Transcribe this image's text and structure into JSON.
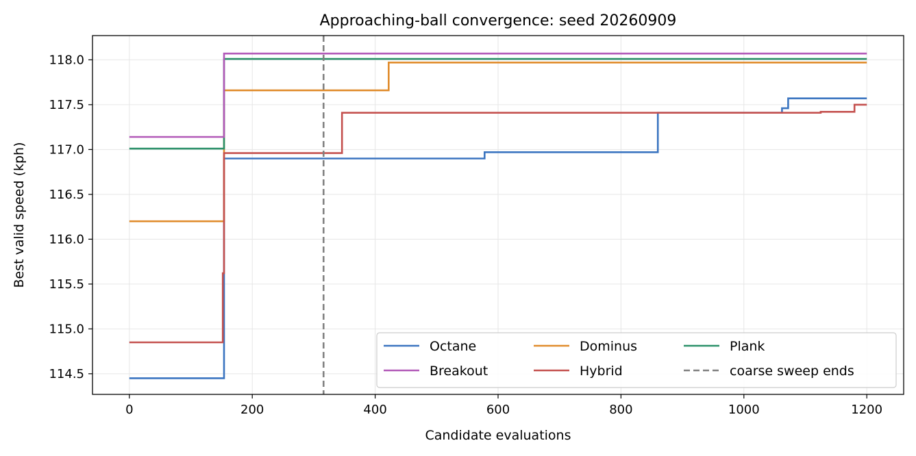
{
  "chart_data": {
    "type": "line",
    "step": true,
    "title": "Approaching-ball convergence: seed 20260909",
    "xlabel": "Candidate evaluations",
    "ylabel": "Best valid speed (kph)",
    "xlim": [
      -60,
      1260
    ],
    "ylim": [
      114.27,
      118.27
    ],
    "xticks": [
      0,
      200,
      400,
      600,
      800,
      1000,
      1200
    ],
    "yticks": [
      114.5,
      115.0,
      115.5,
      116.0,
      116.5,
      117.0,
      117.5,
      118.0
    ],
    "ytick_labels": [
      "114.5",
      "115.0",
      "115.5",
      "116.0",
      "116.5",
      "117.0",
      "117.5",
      "118.0"
    ],
    "grid": true,
    "legend_position": "lower-right",
    "legend_columns": 3,
    "series": [
      {
        "name": "Octane",
        "color": "#3a74c0",
        "points": [
          [
            0,
            114.45
          ],
          [
            154,
            114.45
          ],
          [
            154,
            116.9
          ],
          [
            578,
            116.9
          ],
          [
            578,
            116.97
          ],
          [
            860,
            116.97
          ],
          [
            860,
            117.41
          ],
          [
            1062,
            117.41
          ],
          [
            1062,
            117.46
          ],
          [
            1072,
            117.46
          ],
          [
            1072,
            117.57
          ],
          [
            1200,
            117.57
          ]
        ]
      },
      {
        "name": "Dominus",
        "color": "#e08c2c",
        "points": [
          [
            0,
            116.2
          ],
          [
            154,
            116.2
          ],
          [
            154,
            117.66
          ],
          [
            422,
            117.66
          ],
          [
            422,
            117.97
          ],
          [
            1200,
            117.97
          ]
        ]
      },
      {
        "name": "Plank",
        "color": "#2a9069",
        "points": [
          [
            0,
            117.01
          ],
          [
            154,
            117.01
          ],
          [
            154,
            118.01
          ],
          [
            1200,
            118.01
          ]
        ]
      },
      {
        "name": "Breakout",
        "color": "#b259b8",
        "points": [
          [
            0,
            117.14
          ],
          [
            154,
            117.14
          ],
          [
            154,
            118.07
          ],
          [
            1200,
            118.07
          ]
        ]
      },
      {
        "name": "Hybrid",
        "color": "#c4504e",
        "points": [
          [
            0,
            114.85
          ],
          [
            152,
            114.85
          ],
          [
            152,
            115.62
          ],
          [
            154,
            115.62
          ],
          [
            154,
            116.96
          ],
          [
            346,
            116.96
          ],
          [
            346,
            117.41
          ],
          [
            1125,
            117.41
          ],
          [
            1125,
            117.42
          ],
          [
            1180,
            117.42
          ],
          [
            1180,
            117.5
          ],
          [
            1200,
            117.5
          ]
        ]
      }
    ],
    "vline": {
      "name": "coarse sweep ends",
      "x": 316,
      "color": "#808080"
    }
  }
}
